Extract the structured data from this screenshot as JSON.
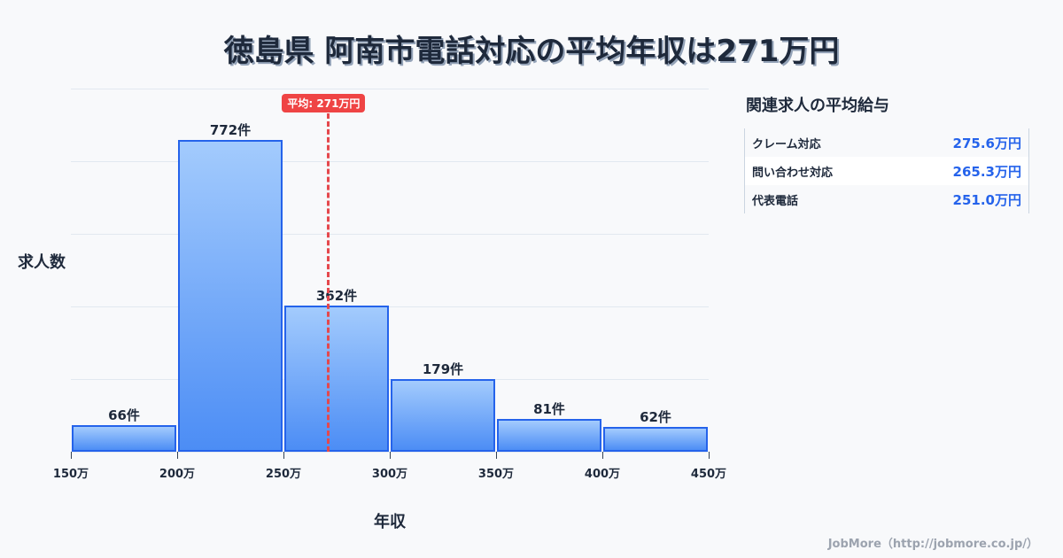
{
  "title": "徳島県 阿南市電話対応の平均年収は271万円",
  "chart_data": {
    "type": "bar",
    "title": "徳島県 阿南市電話対応の平均年収は271万円",
    "xlabel": "年収",
    "ylabel": "求人数",
    "bin_edges": [
      150,
      200,
      250,
      300,
      350,
      400,
      450
    ],
    "tick_labels": [
      "150万",
      "200万",
      "250万",
      "300万",
      "350万",
      "400万",
      "450万"
    ],
    "categories": [
      "150-200万",
      "200-250万",
      "250-300万",
      "300-350万",
      "350-400万",
      "400-450万"
    ],
    "values": [
      66,
      772,
      362,
      179,
      81,
      62
    ],
    "value_labels": [
      "66件",
      "772件",
      "362件",
      "179件",
      "81件",
      "62件"
    ],
    "ylim": [
      0,
      900
    ],
    "grid": true,
    "average": {
      "value": 271,
      "label": "平均: 271万円"
    },
    "colors": {
      "bar_top": "#a3cbfd",
      "bar_bottom": "#4c8df5",
      "bar_border": "#2563eb",
      "average_line": "#e5484d"
    }
  },
  "side_panel": {
    "title": "関連求人の平均給与",
    "rows": [
      {
        "name": "クレーム対応",
        "value": "275.6万円"
      },
      {
        "name": "問い合わせ対応",
        "value": "265.3万円"
      },
      {
        "name": "代表電話",
        "value": "251.0万円"
      }
    ]
  },
  "footer": "JobMore（http://jobmore.co.jp/）"
}
